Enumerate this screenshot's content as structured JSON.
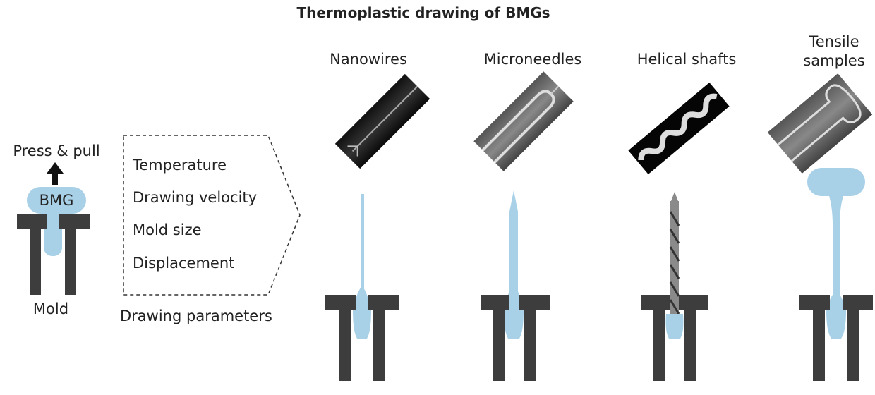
{
  "title": "Thermoplastic drawing of BMGs",
  "left": {
    "action": "Press & pull",
    "material": "BMG",
    "mold": "Mold"
  },
  "parameters": {
    "items": [
      "Temperature",
      "Drawing velocity",
      "Mold size",
      "Displacement"
    ],
    "caption": "Drawing parameters"
  },
  "products": [
    {
      "label": "Nanowires"
    },
    {
      "label": "Microneedles"
    },
    {
      "label": "Helical shafts"
    },
    {
      "label": "Tensile samples"
    }
  ]
}
